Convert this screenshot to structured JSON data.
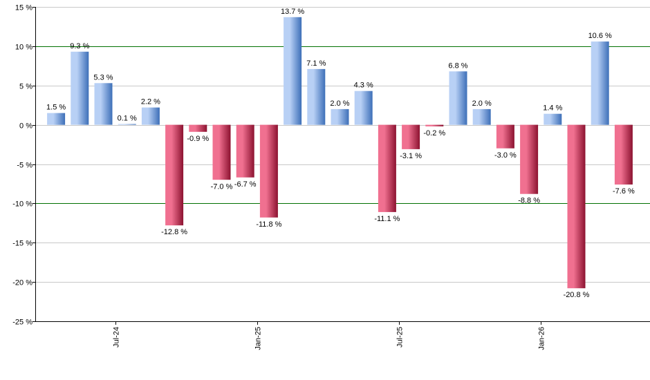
{
  "chart_data": {
    "type": "bar",
    "y_unit_suffix": " %",
    "ylim": [
      -25,
      15
    ],
    "y_ticks": [
      15,
      10,
      5,
      0,
      -5,
      -10,
      -15,
      -20,
      -25
    ],
    "y_tick_labels": [
      "15 %",
      "10 %",
      "5 %",
      "0 %",
      "-5 %",
      "-10 %",
      "-15 %",
      "-20 %",
      "-25 %"
    ],
    "reference_lines": [
      10,
      -10
    ],
    "grid": true,
    "values": [
      1.5,
      9.3,
      5.3,
      0.1,
      2.2,
      -12.8,
      -0.9,
      -7.0,
      -6.7,
      -11.8,
      13.7,
      7.1,
      2.0,
      4.3,
      -11.1,
      -3.1,
      -0.2,
      6.8,
      2.0,
      -3.0,
      -8.8,
      1.4,
      -20.8,
      10.6,
      -7.6
    ],
    "value_labels": [
      "1.5 %",
      "9.3 %",
      "5.3 %",
      "0.1 %",
      "2.2 %",
      "-12.8 %",
      "-0.9 %",
      "-7.0 %",
      "-6.7 %",
      "-11.8 %",
      "13.7 %",
      "7.1 %",
      "2.0 %",
      "4.3 %",
      "-11.1 %",
      "-3.1 %",
      "-0.2 %",
      "6.8 %",
      "2.0 %",
      "-3.0 %",
      "-8.8 %",
      "1.4 %",
      "-20.8 %",
      "10.6 %",
      "-7.6 %"
    ],
    "x_ticks": [
      {
        "label": "Jul-24",
        "after_bar_index": 2
      },
      {
        "label": "Jan-25",
        "after_bar_index": 8
      },
      {
        "label": "Jul-25",
        "after_bar_index": 14
      },
      {
        "label": "Jan-26",
        "after_bar_index": 20
      }
    ],
    "colors": {
      "positive_dark": "#3d6fb8",
      "positive_light": "#b8d0f5",
      "negative_dark": "#8c1230",
      "negative_light": "#f07090",
      "reference_line": "#007000",
      "grid": "#c8c8c8",
      "axis": "#000000"
    }
  }
}
